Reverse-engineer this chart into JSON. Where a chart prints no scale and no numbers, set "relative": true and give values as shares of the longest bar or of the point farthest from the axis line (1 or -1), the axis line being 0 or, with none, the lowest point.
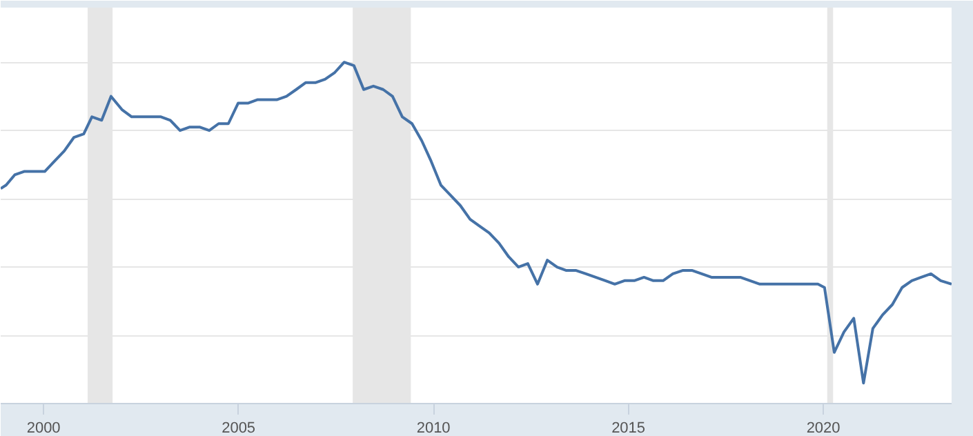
{
  "chart_data": {
    "type": "line",
    "relative": true,
    "grid": "y",
    "line_style": "solid",
    "marker": "none",
    "xlim": [
      1998.9,
      2023.29
    ],
    "xticks": [
      2000,
      2005,
      2010,
      2015,
      2020
    ],
    "bands": [
      {
        "axis": "x",
        "from": 2001.13,
        "to": 2001.77,
        "color": "#e6e6e6"
      },
      {
        "axis": "x",
        "from": 2007.93,
        "to": 2009.42,
        "color": "#e6e6e6"
      },
      {
        "axis": "x",
        "from": 2020.1,
        "to": 2020.25,
        "color": "#e6e6e6"
      }
    ],
    "series": [
      {
        "color": "#4572a7",
        "x": [
          1998.9,
          1999.04,
          1999.26,
          1999.5,
          1999.79,
          2000.03,
          2000.28,
          2000.53,
          2000.78,
          2001.03,
          2001.24,
          2001.49,
          2001.73,
          2002.02,
          2002.26,
          2002.51,
          2002.76,
          2003.01,
          2003.25,
          2003.5,
          2003.75,
          2004.0,
          2004.25,
          2004.49,
          2004.74,
          2004.99,
          2005.24,
          2005.48,
          2005.73,
          2005.98,
          2006.23,
          2006.48,
          2006.72,
          2006.97,
          2007.22,
          2007.47,
          2007.71,
          2007.96,
          2008.21,
          2008.46,
          2008.71,
          2008.95,
          2009.2,
          2009.45,
          2009.7,
          2009.94,
          2010.19,
          2010.44,
          2010.69,
          2010.94,
          2011.18,
          2011.43,
          2011.68,
          2011.93,
          2012.18,
          2012.42,
          2012.67,
          2012.92,
          2013.17,
          2013.41,
          2013.66,
          2013.91,
          2014.16,
          2014.41,
          2014.65,
          2014.9,
          2015.15,
          2015.4,
          2015.64,
          2015.89,
          2016.14,
          2016.39,
          2016.64,
          2016.88,
          2017.13,
          2017.38,
          2017.63,
          2017.87,
          2018.12,
          2018.37,
          2018.62,
          2018.87,
          2019.11,
          2019.36,
          2019.61,
          2019.86,
          2020.03,
          2020.28,
          2020.53,
          2020.78,
          2021.03,
          2021.27,
          2021.52,
          2021.77,
          2022.02,
          2022.27,
          2022.51,
          2022.76,
          2023.01,
          2023.29
        ],
        "values": [
          0.63,
          0.64,
          0.67,
          0.68,
          0.68,
          0.68,
          0.71,
          0.74,
          0.78,
          0.79,
          0.84,
          0.83,
          0.9,
          0.86,
          0.84,
          0.84,
          0.84,
          0.84,
          0.83,
          0.8,
          0.81,
          0.81,
          0.8,
          0.82,
          0.82,
          0.88,
          0.88,
          0.89,
          0.89,
          0.89,
          0.9,
          0.92,
          0.94,
          0.94,
          0.95,
          0.97,
          1.0,
          0.99,
          0.92,
          0.93,
          0.92,
          0.9,
          0.84,
          0.82,
          0.77,
          0.71,
          0.64,
          0.61,
          0.58,
          0.54,
          0.52,
          0.5,
          0.47,
          0.43,
          0.4,
          0.41,
          0.35,
          0.42,
          0.4,
          0.39,
          0.39,
          0.38,
          0.37,
          0.36,
          0.35,
          0.36,
          0.36,
          0.37,
          0.36,
          0.36,
          0.38,
          0.39,
          0.39,
          0.38,
          0.37,
          0.37,
          0.37,
          0.37,
          0.36,
          0.35,
          0.35,
          0.35,
          0.35,
          0.35,
          0.35,
          0.35,
          0.34,
          0.15,
          0.21,
          0.25,
          0.06,
          0.22,
          0.26,
          0.29,
          0.34,
          0.36,
          0.37,
          0.38,
          0.36,
          0.35
        ]
      }
    ]
  }
}
